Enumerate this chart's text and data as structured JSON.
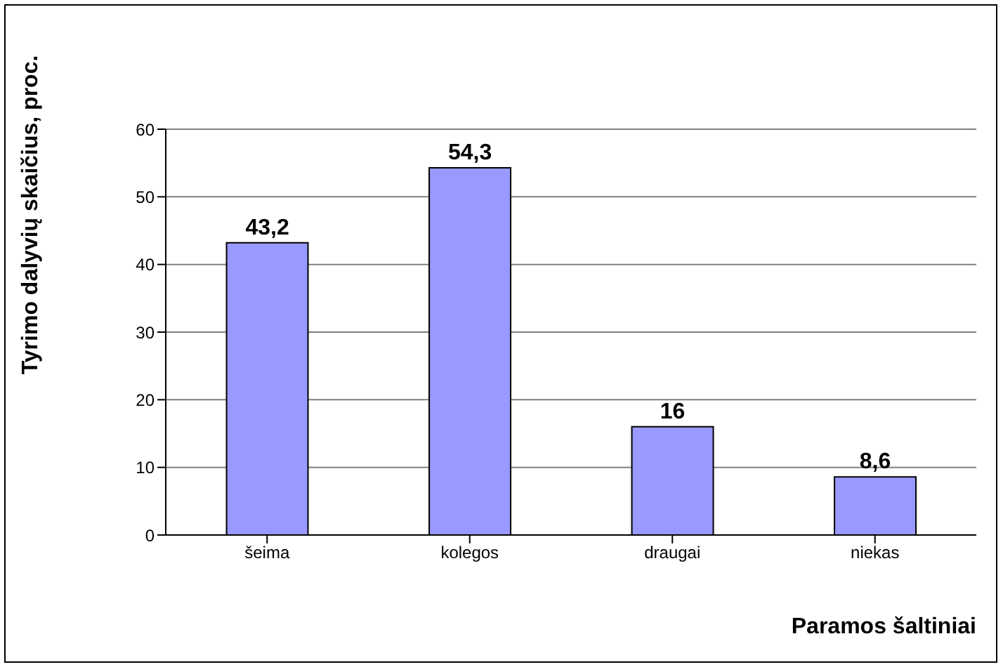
{
  "chart_data": {
    "type": "bar",
    "xlabel": "Paramos šaltiniai",
    "ylabel": "Tyrimo dalyvių skaičius, proc.",
    "categories": [
      "šeima",
      "kolegos",
      "draugai",
      "niekas"
    ],
    "values": [
      43.2,
      54.3,
      16,
      8.6
    ],
    "value_labels": [
      "43,2",
      "54,3",
      "16",
      "8,6"
    ],
    "color": "#9999ff",
    "ylim": [
      0,
      60
    ],
    "yticks": [
      0,
      10,
      20,
      30,
      40,
      50,
      60
    ],
    "grid": "y"
  }
}
